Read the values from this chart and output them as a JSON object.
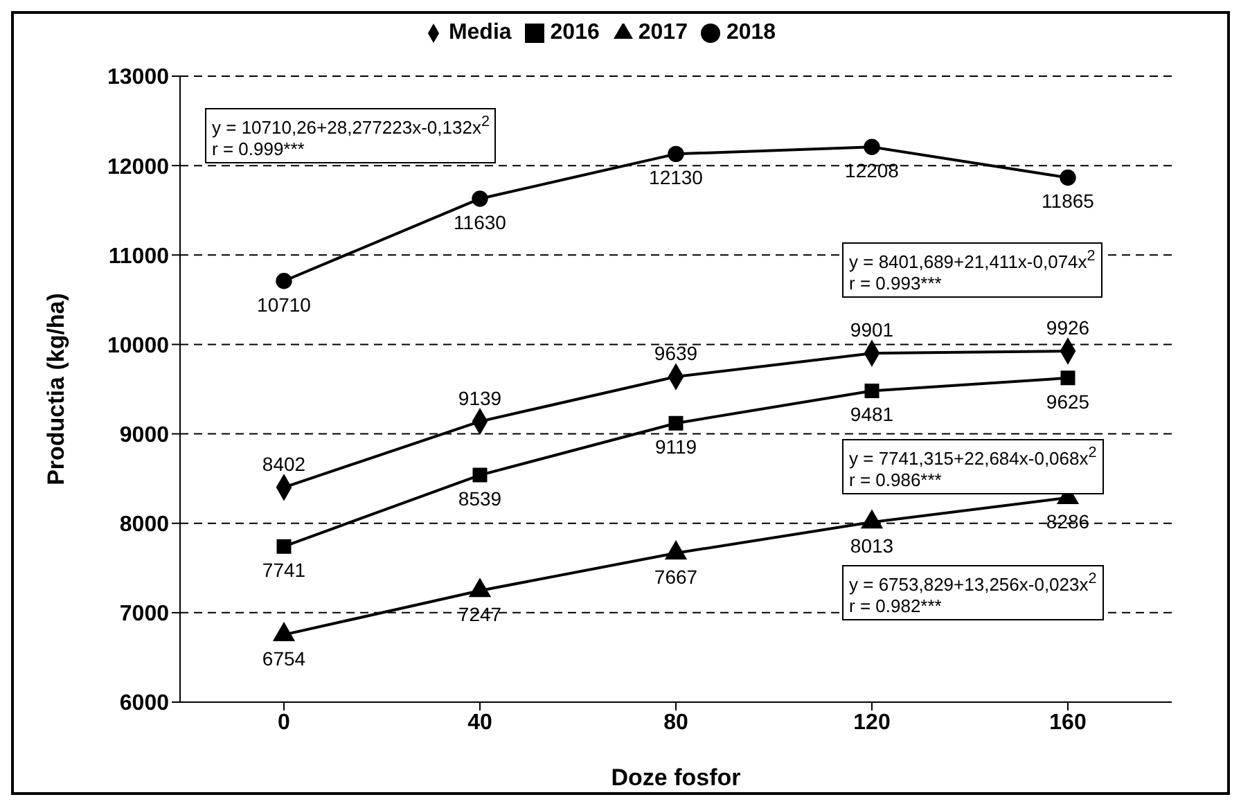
{
  "chart_data": {
    "type": "line",
    "xlabel": "Doze fosfor",
    "ylabel": "Productia (kg/ha)",
    "categories": [
      "0",
      "40",
      "80",
      "120",
      "160"
    ],
    "series": [
      {
        "name": "Media",
        "color": "#000000",
        "marker": "diamond",
        "values": [
          8402,
          9139,
          9639,
          9901,
          9926
        ]
      },
      {
        "name": "2016",
        "color": "#000000",
        "marker": "square",
        "values": [
          7741,
          8539,
          9119,
          9481,
          9625
        ]
      },
      {
        "name": "2017",
        "color": "#000000",
        "marker": "triangle",
        "values": [
          6754,
          7247,
          7667,
          8013,
          8286
        ]
      },
      {
        "name": "2018",
        "color": "#000000",
        "marker": "circle",
        "values": [
          10710,
          11630,
          12130,
          12208,
          11865
        ]
      }
    ],
    "ylim": [
      6000,
      13000
    ],
    "yticks": [
      6000,
      7000,
      8000,
      9000,
      10000,
      11000,
      12000,
      13000
    ],
    "grid": "y",
    "legend": "top",
    "data_labels": true,
    "annotations": [
      "y = 10710,26+28,277223x-0,132x$^{2}$\nr = 0.999***",
      "y = 8401,689+21,411x-0,074x$^{2}$\nr = 0.993***",
      "y = 7741,315+22,684x-0,068x$^{2}$\nr = 0.986***",
      "y = 6753,829+13,256x-0,023x$^{2}$\nr = 0.982***"
    ]
  }
}
